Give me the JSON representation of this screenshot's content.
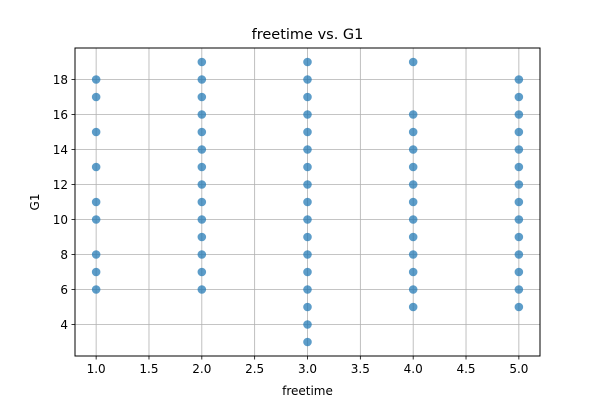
{
  "chart_data": {
    "type": "scatter",
    "title": "freetime vs. G1",
    "xlabel": "freetime",
    "ylabel": "G1",
    "xlim": [
      0.8,
      5.2
    ],
    "ylim": [
      2.2,
      19.8
    ],
    "xticks": [
      1.0,
      1.5,
      2.0,
      2.5,
      3.0,
      3.5,
      4.0,
      4.5,
      5.0
    ],
    "xtick_labels": [
      "1.0",
      "1.5",
      "2.0",
      "2.5",
      "3.0",
      "3.5",
      "4.0",
      "4.5",
      "5.0"
    ],
    "yticks": [
      4,
      6,
      8,
      10,
      12,
      14,
      16,
      18
    ],
    "ytick_labels": [
      "4",
      "6",
      "8",
      "10",
      "12",
      "14",
      "16",
      "18"
    ],
    "grid": true,
    "marker_color": "#1f77b4",
    "points": [
      {
        "x": 1,
        "y": 6
      },
      {
        "x": 1,
        "y": 7
      },
      {
        "x": 1,
        "y": 8
      },
      {
        "x": 1,
        "y": 10
      },
      {
        "x": 1,
        "y": 11
      },
      {
        "x": 1,
        "y": 13
      },
      {
        "x": 1,
        "y": 15
      },
      {
        "x": 1,
        "y": 17
      },
      {
        "x": 1,
        "y": 18
      },
      {
        "x": 2,
        "y": 6
      },
      {
        "x": 2,
        "y": 7
      },
      {
        "x": 2,
        "y": 8
      },
      {
        "x": 2,
        "y": 9
      },
      {
        "x": 2,
        "y": 10
      },
      {
        "x": 2,
        "y": 11
      },
      {
        "x": 2,
        "y": 12
      },
      {
        "x": 2,
        "y": 13
      },
      {
        "x": 2,
        "y": 14
      },
      {
        "x": 2,
        "y": 15
      },
      {
        "x": 2,
        "y": 16
      },
      {
        "x": 2,
        "y": 17
      },
      {
        "x": 2,
        "y": 18
      },
      {
        "x": 2,
        "y": 19
      },
      {
        "x": 3,
        "y": 3
      },
      {
        "x": 3,
        "y": 4
      },
      {
        "x": 3,
        "y": 5
      },
      {
        "x": 3,
        "y": 6
      },
      {
        "x": 3,
        "y": 7
      },
      {
        "x": 3,
        "y": 8
      },
      {
        "x": 3,
        "y": 9
      },
      {
        "x": 3,
        "y": 10
      },
      {
        "x": 3,
        "y": 11
      },
      {
        "x": 3,
        "y": 12
      },
      {
        "x": 3,
        "y": 13
      },
      {
        "x": 3,
        "y": 14
      },
      {
        "x": 3,
        "y": 15
      },
      {
        "x": 3,
        "y": 16
      },
      {
        "x": 3,
        "y": 17
      },
      {
        "x": 3,
        "y": 18
      },
      {
        "x": 3,
        "y": 19
      },
      {
        "x": 4,
        "y": 5
      },
      {
        "x": 4,
        "y": 6
      },
      {
        "x": 4,
        "y": 7
      },
      {
        "x": 4,
        "y": 8
      },
      {
        "x": 4,
        "y": 9
      },
      {
        "x": 4,
        "y": 10
      },
      {
        "x": 4,
        "y": 11
      },
      {
        "x": 4,
        "y": 12
      },
      {
        "x": 4,
        "y": 13
      },
      {
        "x": 4,
        "y": 14
      },
      {
        "x": 4,
        "y": 15
      },
      {
        "x": 4,
        "y": 16
      },
      {
        "x": 4,
        "y": 19
      },
      {
        "x": 5,
        "y": 5
      },
      {
        "x": 5,
        "y": 6
      },
      {
        "x": 5,
        "y": 7
      },
      {
        "x": 5,
        "y": 8
      },
      {
        "x": 5,
        "y": 9
      },
      {
        "x": 5,
        "y": 10
      },
      {
        "x": 5,
        "y": 11
      },
      {
        "x": 5,
        "y": 12
      },
      {
        "x": 5,
        "y": 13
      },
      {
        "x": 5,
        "y": 14
      },
      {
        "x": 5,
        "y": 15
      },
      {
        "x": 5,
        "y": 16
      },
      {
        "x": 5,
        "y": 17
      },
      {
        "x": 5,
        "y": 18
      }
    ]
  }
}
